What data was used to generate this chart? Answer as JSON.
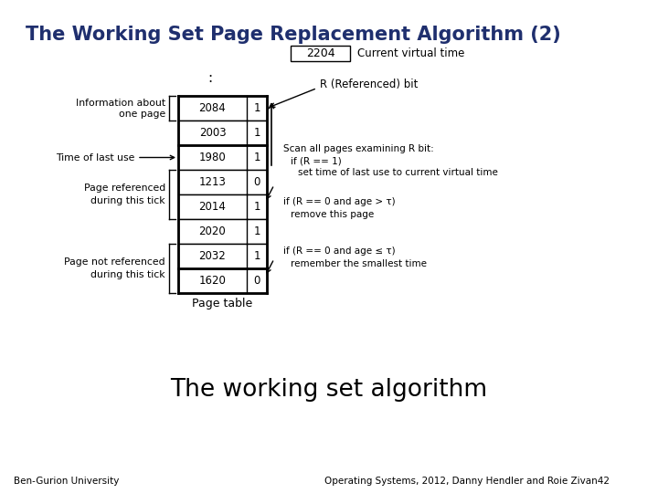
{
  "title": "The Working Set Page Replacement Algorithm (2)",
  "subtitle": "The working set algorithm",
  "footer_left": "Ben-Gurion University",
  "footer_right": "Operating Systems, 2012, Danny Hendler and Roie Zivan",
  "footer_num": "42",
  "current_vtime_label": "Current virtual time",
  "current_vtime_val": "2204",
  "page_table_label": "Page table",
  "rows": [
    {
      "time": "2084",
      "R": "1"
    },
    {
      "time": "2003",
      "R": "1"
    },
    {
      "time": "1980",
      "R": "1"
    },
    {
      "time": "1213",
      "R": "0"
    },
    {
      "time": "2014",
      "R": "1"
    },
    {
      "time": "2020",
      "R": "1"
    },
    {
      "time": "2032",
      "R": "1"
    },
    {
      "time": "1620",
      "R": "0"
    }
  ],
  "title_color": "#1f2f6e",
  "bg_color": "#ffffff"
}
